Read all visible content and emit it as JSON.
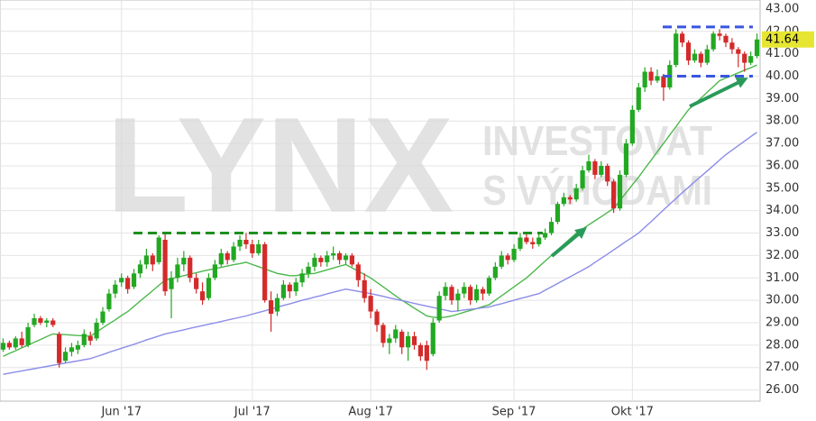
{
  "chart_data": {
    "type": "candlestick",
    "watermark": {
      "logo": "LYNX",
      "line1": "INVESTOVAT",
      "line2": "S VÝHODAMI"
    },
    "categories": [
      null,
      null,
      null,
      null,
      null,
      null,
      null,
      null,
      null,
      null,
      null,
      null,
      null,
      null,
      null,
      null,
      null,
      null,
      null,
      "Jun '17",
      null,
      null,
      null,
      null,
      null,
      null,
      null,
      null,
      null,
      null,
      null,
      null,
      null,
      null,
      null,
      null,
      null,
      null,
      null,
      null,
      "Jul '17",
      null,
      null,
      null,
      null,
      null,
      null,
      null,
      null,
      null,
      null,
      null,
      null,
      null,
      null,
      null,
      null,
      null,
      null,
      "Aug '17",
      null,
      null,
      null,
      null,
      null,
      null,
      null,
      null,
      null,
      null,
      null,
      null,
      null,
      null,
      null,
      null,
      null,
      null,
      null,
      null,
      null,
      null,
      "Sep '17",
      null,
      null,
      null,
      null,
      null,
      null,
      null,
      null,
      null,
      null,
      null,
      null,
      null,
      null,
      null,
      null,
      null,
      null,
      "Okt '17",
      null,
      null,
      null,
      null,
      null,
      null,
      null,
      null,
      null,
      null,
      null,
      null,
      null,
      null,
      null,
      null,
      null,
      null,
      null,
      null
    ],
    "ohlc": [
      [
        27.8,
        28.3,
        27.7,
        28.1
      ],
      [
        28.1,
        28.2,
        27.8,
        27.9
      ],
      [
        27.9,
        28.4,
        27.8,
        28.3
      ],
      [
        28.3,
        28.6,
        27.9,
        28.0
      ],
      [
        28.0,
        29.0,
        27.9,
        28.8
      ],
      [
        28.9,
        29.4,
        28.8,
        29.2
      ],
      [
        29.2,
        29.3,
        28.9,
        29.0
      ],
      [
        29.0,
        29.2,
        28.8,
        29.1
      ],
      [
        29.1,
        29.2,
        28.8,
        28.9
      ],
      [
        28.5,
        28.6,
        27.0,
        27.2
      ],
      [
        27.3,
        27.9,
        27.2,
        27.7
      ],
      [
        27.7,
        28.1,
        27.5,
        27.9
      ],
      [
        27.8,
        28.2,
        27.6,
        28.0
      ],
      [
        28.0,
        28.7,
        27.9,
        28.5
      ],
      [
        28.4,
        28.6,
        28.0,
        28.2
      ],
      [
        28.3,
        29.2,
        28.2,
        29.0
      ],
      [
        29.0,
        29.7,
        28.9,
        29.5
      ],
      [
        29.6,
        30.5,
        29.5,
        30.3
      ],
      [
        30.3,
        30.9,
        30.1,
        30.7
      ],
      [
        30.8,
        31.2,
        30.6,
        31.0
      ],
      [
        31.0,
        31.1,
        30.3,
        30.5
      ],
      [
        30.6,
        31.4,
        30.5,
        31.2
      ],
      [
        31.2,
        31.8,
        31.0,
        31.6
      ],
      [
        31.6,
        32.3,
        31.4,
        32.0
      ],
      [
        32.0,
        32.1,
        31.3,
        31.6
      ],
      [
        31.7,
        32.9,
        31.6,
        32.8
      ],
      [
        32.7,
        33.0,
        30.2,
        30.4
      ],
      [
        30.5,
        31.3,
        29.2,
        31.0
      ],
      [
        31.0,
        31.9,
        30.8,
        31.6
      ],
      [
        31.6,
        32.2,
        31.3,
        31.9
      ],
      [
        31.9,
        32.0,
        30.8,
        31.0
      ],
      [
        31.0,
        31.2,
        30.3,
        30.5
      ],
      [
        30.4,
        30.8,
        29.8,
        30.0
      ],
      [
        30.1,
        31.2,
        30.0,
        31.0
      ],
      [
        31.0,
        31.8,
        30.9,
        31.6
      ],
      [
        31.6,
        32.3,
        31.5,
        32.1
      ],
      [
        32.1,
        32.2,
        31.6,
        31.8
      ],
      [
        31.8,
        32.6,
        31.7,
        32.4
      ],
      [
        32.4,
        32.9,
        32.2,
        32.7
      ],
      [
        32.7,
        33.0,
        32.3,
        32.5
      ],
      [
        32.5,
        32.7,
        31.9,
        32.1
      ],
      [
        32.1,
        32.7,
        32.0,
        32.5
      ],
      [
        32.5,
        32.6,
        29.9,
        30.0
      ],
      [
        30.0,
        30.4,
        28.6,
        29.4
      ],
      [
        29.5,
        30.3,
        29.3,
        30.1
      ],
      [
        30.1,
        30.9,
        30.0,
        30.7
      ],
      [
        30.7,
        30.8,
        30.1,
        30.4
      ],
      [
        30.4,
        31.0,
        30.2,
        30.8
      ],
      [
        30.8,
        31.4,
        30.6,
        31.2
      ],
      [
        31.2,
        31.7,
        31.0,
        31.5
      ],
      [
        31.5,
        32.1,
        31.3,
        31.9
      ],
      [
        31.9,
        32.0,
        31.5,
        31.7
      ],
      [
        31.7,
        32.2,
        31.5,
        32.0
      ],
      [
        32.0,
        32.4,
        31.8,
        32.1
      ],
      [
        32.1,
        32.2,
        31.6,
        31.8
      ],
      [
        31.8,
        32.1,
        31.6,
        32.0
      ],
      [
        32.0,
        32.1,
        31.5,
        31.6
      ],
      [
        31.6,
        31.7,
        30.6,
        30.9
      ],
      [
        30.9,
        31.2,
        29.9,
        30.1
      ],
      [
        30.2,
        30.5,
        29.2,
        29.5
      ],
      [
        29.5,
        29.6,
        28.6,
        28.9
      ],
      [
        28.9,
        29.0,
        27.9,
        28.1
      ],
      [
        28.1,
        28.5,
        27.6,
        28.3
      ],
      [
        28.3,
        28.9,
        28.1,
        28.7
      ],
      [
        28.6,
        28.7,
        27.6,
        27.9
      ],
      [
        27.9,
        28.6,
        27.3,
        28.4
      ],
      [
        28.4,
        28.6,
        27.8,
        28.0
      ],
      [
        28.0,
        28.1,
        27.3,
        27.5
      ],
      [
        28.0,
        28.2,
        26.9,
        27.3
      ],
      [
        27.6,
        29.2,
        27.5,
        29.0
      ],
      [
        29.1,
        30.4,
        29.0,
        30.2
      ],
      [
        30.2,
        30.8,
        30.0,
        30.6
      ],
      [
        30.6,
        30.7,
        29.8,
        30.0
      ],
      [
        30.0,
        30.5,
        29.5,
        30.3
      ],
      [
        30.3,
        30.8,
        30.1,
        30.6
      ],
      [
        30.6,
        30.7,
        29.8,
        30.0
      ],
      [
        30.0,
        30.7,
        29.9,
        30.5
      ],
      [
        30.5,
        30.6,
        30.0,
        30.3
      ],
      [
        30.3,
        31.1,
        30.2,
        31.0
      ],
      [
        31.0,
        31.7,
        30.9,
        31.5
      ],
      [
        31.5,
        32.2,
        31.4,
        32.0
      ],
      [
        32.0,
        32.1,
        31.6,
        31.8
      ],
      [
        31.8,
        32.5,
        31.7,
        32.3
      ],
      [
        32.3,
        33.0,
        32.2,
        32.8
      ],
      [
        32.8,
        33.0,
        32.5,
        32.6
      ],
      [
        32.6,
        32.8,
        32.3,
        32.5
      ],
      [
        32.5,
        33.0,
        32.4,
        32.8
      ],
      [
        32.8,
        33.2,
        32.7,
        33.0
      ],
      [
        33.0,
        33.7,
        32.9,
        33.5
      ],
      [
        33.5,
        34.4,
        33.4,
        34.3
      ],
      [
        34.3,
        34.8,
        34.2,
        34.6
      ],
      [
        34.6,
        34.7,
        34.3,
        34.5
      ],
      [
        34.5,
        35.2,
        34.4,
        35.0
      ],
      [
        35.0,
        36.0,
        34.9,
        35.8
      ],
      [
        35.8,
        36.5,
        35.7,
        36.2
      ],
      [
        36.2,
        36.3,
        35.4,
        35.6
      ],
      [
        35.6,
        36.2,
        35.5,
        36.0
      ],
      [
        36.0,
        36.1,
        35.1,
        35.3
      ],
      [
        35.3,
        35.4,
        33.9,
        34.1
      ],
      [
        34.1,
        35.8,
        34.0,
        35.6
      ],
      [
        35.6,
        37.2,
        35.5,
        37.0
      ],
      [
        37.0,
        38.7,
        36.9,
        38.5
      ],
      [
        38.5,
        39.7,
        38.4,
        39.5
      ],
      [
        39.5,
        40.4,
        39.3,
        40.2
      ],
      [
        40.2,
        40.4,
        39.6,
        39.8
      ],
      [
        39.8,
        40.3,
        39.7,
        40.0
      ],
      [
        40.0,
        40.1,
        38.9,
        39.5
      ],
      [
        39.5,
        40.7,
        39.4,
        40.5
      ],
      [
        40.5,
        42.1,
        40.4,
        41.9
      ],
      [
        41.9,
        42.0,
        41.3,
        41.5
      ],
      [
        41.5,
        41.6,
        40.5,
        40.7
      ],
      [
        40.7,
        41.2,
        40.6,
        41.0
      ],
      [
        41.0,
        41.1,
        40.4,
        40.6
      ],
      [
        40.6,
        41.4,
        40.5,
        41.2
      ],
      [
        41.2,
        42.0,
        41.1,
        41.9
      ],
      [
        41.9,
        42.1,
        41.6,
        41.8
      ],
      [
        41.8,
        41.9,
        41.3,
        41.5
      ],
      [
        41.5,
        41.7,
        41.0,
        41.2
      ],
      [
        41.2,
        41.3,
        40.4,
        41.0
      ],
      [
        41.0,
        41.1,
        40.2,
        40.6
      ],
      [
        40.6,
        41.1,
        40.5,
        40.9
      ],
      [
        40.9,
        41.9,
        40.8,
        41.64
      ]
    ],
    "up_color": "#22a822",
    "down_color": "#d42a2a",
    "series": [
      {
        "color": "#4cb84c",
        "values": [
          27.5,
          27.63,
          27.75,
          27.88,
          28.0,
          28.13,
          28.25,
          28.38,
          28.5,
          28.48,
          28.47,
          28.45,
          28.43,
          28.42,
          28.4,
          28.58,
          28.77,
          28.95,
          29.13,
          29.32,
          29.5,
          29.73,
          29.97,
          30.2,
          30.43,
          30.67,
          30.9,
          30.97,
          31.03,
          31.1,
          31.17,
          31.23,
          31.3,
          31.36,
          31.41,
          31.47,
          31.53,
          31.59,
          31.64,
          31.7,
          31.6,
          31.5,
          31.4,
          31.3,
          31.2,
          31.15,
          31.1,
          31.1,
          31.15,
          31.18,
          31.2,
          31.28,
          31.36,
          31.44,
          31.52,
          31.6,
          31.45,
          31.3,
          31.15,
          31.0,
          30.8,
          30.6,
          30.4,
          30.2,
          30.0,
          29.83,
          29.65,
          29.48,
          29.3,
          29.25,
          29.22,
          29.25,
          29.3,
          29.38,
          29.47,
          29.55,
          29.63,
          29.72,
          29.8,
          30.0,
          30.2,
          30.4,
          30.6,
          30.8,
          31.0,
          31.25,
          31.5,
          31.75,
          32.0,
          32.25,
          32.5,
          32.75,
          33.0,
          33.18,
          33.37,
          33.55,
          33.73,
          33.92,
          34.1,
          34.45,
          34.8,
          35.15,
          35.5,
          35.88,
          36.25,
          36.63,
          37.0,
          37.38,
          37.75,
          38.13,
          38.5,
          38.76,
          39.02,
          39.28,
          39.54,
          39.8,
          39.92,
          40.03,
          40.15,
          40.27,
          40.38,
          40.5
        ]
      },
      {
        "color": "#8c8ce8",
        "values": [
          26.7,
          26.75,
          26.8,
          26.85,
          26.9,
          26.95,
          27.0,
          27.05,
          27.1,
          27.15,
          27.2,
          27.25,
          27.3,
          27.35,
          27.4,
          27.49,
          27.58,
          27.68,
          27.77,
          27.86,
          27.95,
          28.04,
          28.13,
          28.23,
          28.32,
          28.41,
          28.5,
          28.56,
          28.62,
          28.68,
          28.75,
          28.81,
          28.87,
          28.93,
          28.99,
          29.05,
          29.12,
          29.18,
          29.24,
          29.3,
          29.38,
          29.46,
          29.53,
          29.61,
          29.69,
          29.77,
          29.84,
          29.92,
          30.0,
          30.07,
          30.14,
          30.21,
          30.29,
          30.36,
          30.43,
          30.5,
          30.45,
          30.4,
          30.35,
          30.3,
          30.24,
          30.18,
          30.11,
          30.05,
          29.99,
          29.93,
          29.86,
          29.8,
          29.74,
          29.68,
          29.62,
          29.56,
          29.5,
          29.53,
          29.57,
          29.6,
          29.63,
          29.67,
          29.7,
          29.78,
          29.85,
          29.93,
          30.0,
          30.08,
          30.15,
          30.23,
          30.3,
          30.45,
          30.6,
          30.75,
          30.9,
          31.05,
          31.2,
          31.35,
          31.5,
          31.69,
          31.88,
          32.06,
          32.25,
          32.44,
          32.63,
          32.81,
          33.0,
          33.26,
          33.51,
          33.77,
          34.03,
          34.29,
          34.54,
          34.8,
          35.04,
          35.29,
          35.53,
          35.77,
          36.01,
          36.26,
          36.5,
          36.7,
          36.9,
          37.1,
          37.3,
          37.5
        ]
      }
    ],
    "levels": [
      {
        "value": 33.0,
        "color": "#1e8f1e"
      },
      {
        "value": 42.2,
        "color": "#3a56e0"
      },
      {
        "value": 40.0,
        "color": "#3a56e0"
      }
    ],
    "last_price_color": "#e6e632",
    "ylim": [
      25.5,
      43.4
    ],
    "yticks": [
      {
        "value": 26,
        "label": "26.00"
      },
      {
        "value": 27,
        "label": "27.00"
      },
      {
        "value": 28,
        "label": "28.00"
      },
      {
        "value": 29,
        "label": "29.00"
      },
      {
        "value": 30,
        "label": "30.00"
      },
      {
        "value": 31,
        "label": "31.00"
      },
      {
        "value": 32,
        "label": "32.00"
      },
      {
        "value": 33,
        "label": "33.00"
      },
      {
        "value": 34,
        "label": "34.00"
      },
      {
        "value": 35,
        "label": "35.00"
      },
      {
        "value": 36,
        "label": "36.00"
      },
      {
        "value": 37,
        "label": "37.00"
      },
      {
        "value": 38,
        "label": "38.00"
      },
      {
        "value": 39,
        "label": "39.00"
      },
      {
        "value": 40,
        "label": "40.00"
      },
      {
        "value": 41,
        "label": "41.00"
      },
      {
        "value": 42,
        "label": "42.00"
      },
      {
        "value": 43,
        "label": "43.00"
      }
    ],
    "grid": true
  }
}
